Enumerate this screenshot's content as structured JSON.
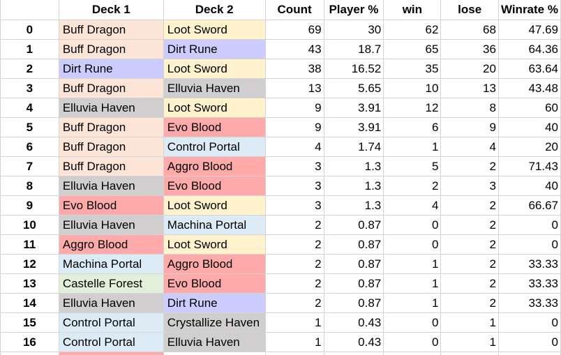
{
  "headers": [
    "",
    "Deck 1",
    "Deck 2",
    "Count",
    "Player %",
    "win",
    "lose",
    "Winrate %"
  ],
  "deck_colors": {
    "Buff Dragon": "#fce4d6",
    "Loot Sword": "#fff2cc",
    "Dirt Rune": "#ccccff",
    "Elluvia Haven": "#d0cece",
    "Evo Blood": "#ffaaaa",
    "Control Portal": "#ddebf7",
    "Aggro Blood": "#ffaaaa",
    "Machina Portal": "#ddebf7",
    "Castelle Forest": "#e2efda",
    "Crystallize Haven": "#d0cece"
  },
  "rows": [
    {
      "idx": "0",
      "deck1": "Buff Dragon",
      "deck2": "Loot Sword",
      "count": "69",
      "player_pct": "30",
      "win": "62",
      "lose": "68",
      "winrate": "47.69"
    },
    {
      "idx": "1",
      "deck1": "Buff Dragon",
      "deck2": "Dirt Rune",
      "count": "43",
      "player_pct": "18.7",
      "win": "65",
      "lose": "36",
      "winrate": "64.36"
    },
    {
      "idx": "2",
      "deck1": "Dirt Rune",
      "deck2": "Loot Sword",
      "count": "38",
      "player_pct": "16.52",
      "win": "35",
      "lose": "20",
      "winrate": "63.64"
    },
    {
      "idx": "3",
      "deck1": "Buff Dragon",
      "deck2": "Elluvia Haven",
      "count": "13",
      "player_pct": "5.65",
      "win": "10",
      "lose": "13",
      "winrate": "43.48"
    },
    {
      "idx": "4",
      "deck1": "Elluvia Haven",
      "deck2": "Loot Sword",
      "count": "9",
      "player_pct": "3.91",
      "win": "12",
      "lose": "8",
      "winrate": "60"
    },
    {
      "idx": "5",
      "deck1": "Buff Dragon",
      "deck2": "Evo Blood",
      "count": "9",
      "player_pct": "3.91",
      "win": "6",
      "lose": "9",
      "winrate": "40"
    },
    {
      "idx": "6",
      "deck1": "Buff Dragon",
      "deck2": "Control Portal",
      "count": "4",
      "player_pct": "1.74",
      "win": "1",
      "lose": "4",
      "winrate": "20"
    },
    {
      "idx": "7",
      "deck1": "Buff Dragon",
      "deck2": "Aggro Blood",
      "count": "3",
      "player_pct": "1.3",
      "win": "5",
      "lose": "2",
      "winrate": "71.43"
    },
    {
      "idx": "8",
      "deck1": "Elluvia Haven",
      "deck2": "Evo Blood",
      "count": "3",
      "player_pct": "1.3",
      "win": "2",
      "lose": "3",
      "winrate": "40"
    },
    {
      "idx": "9",
      "deck1": "Evo Blood",
      "deck2": "Loot Sword",
      "count": "3",
      "player_pct": "1.3",
      "win": "4",
      "lose": "2",
      "winrate": "66.67"
    },
    {
      "idx": "10",
      "deck1": "Elluvia Haven",
      "deck2": "Machina Portal",
      "count": "2",
      "player_pct": "0.87",
      "win": "0",
      "lose": "2",
      "winrate": "0"
    },
    {
      "idx": "11",
      "deck1": "Aggro Blood",
      "deck2": "Loot Sword",
      "count": "2",
      "player_pct": "0.87",
      "win": "0",
      "lose": "2",
      "winrate": "0"
    },
    {
      "idx": "12",
      "deck1": "Machina Portal",
      "deck2": "Aggro Blood",
      "count": "2",
      "player_pct": "0.87",
      "win": "1",
      "lose": "2",
      "winrate": "33.33"
    },
    {
      "idx": "13",
      "deck1": "Castelle Forest",
      "deck2": "Evo Blood",
      "count": "2",
      "player_pct": "0.87",
      "win": "1",
      "lose": "2",
      "winrate": "33.33"
    },
    {
      "idx": "14",
      "deck1": "Elluvia Haven",
      "deck2": "Dirt Rune",
      "count": "2",
      "player_pct": "0.87",
      "win": "1",
      "lose": "2",
      "winrate": "33.33"
    },
    {
      "idx": "15",
      "deck1": "Control Portal",
      "deck2": "Crystallize Haven",
      "count": "1",
      "player_pct": "0.43",
      "win": "0",
      "lose": "1",
      "winrate": "0"
    },
    {
      "idx": "16",
      "deck1": "Control Portal",
      "deck2": "Elluvia Haven",
      "count": "1",
      "player_pct": "0.43",
      "win": "0",
      "lose": "1",
      "winrate": "0"
    }
  ],
  "partial_row_deck1_color": "#ffaaaa"
}
